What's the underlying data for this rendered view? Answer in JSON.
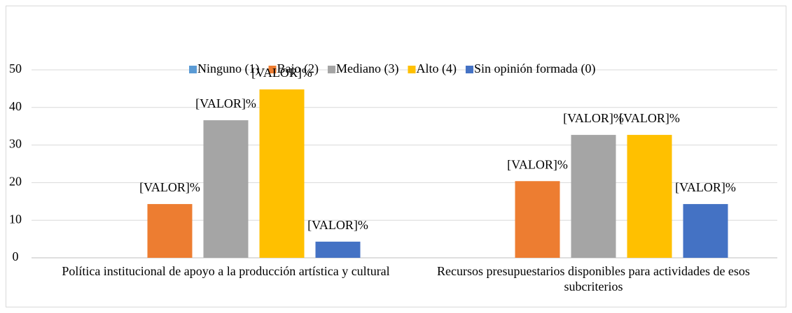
{
  "chart_data": {
    "type": "bar",
    "categories": [
      "Política institucional de apoyo a la producción artística y cultural",
      "Recursos presupuestarios disponibles para actividades de esos subcriterios"
    ],
    "series": [
      {
        "name": "Ninguno (1)",
        "color": "#5b9bd5",
        "values": [
          0,
          0
        ],
        "value_labels": [
          null,
          null
        ]
      },
      {
        "name": "Bajo (2)",
        "color": "#ed7d31",
        "values": [
          14.3,
          20.4
        ],
        "value_labels": [
          "[VALOR]%",
          "[VALOR]%"
        ]
      },
      {
        "name": "Mediano (3)",
        "color": "#a5a5a5",
        "values": [
          36.6,
          32.7
        ],
        "value_labels": [
          "[VALOR]%",
          "[VALOR]%"
        ]
      },
      {
        "name": "Alto (4)",
        "color": "#ffc000",
        "values": [
          44.8,
          32.7
        ],
        "value_labels": [
          "[VALOR]%",
          "[VALOR]%"
        ]
      },
      {
        "name": "Sin opinión formada (0)",
        "color": "#4472c4",
        "values": [
          4.3,
          14.3
        ],
        "value_labels": [
          "[VALOR]%",
          "[VALOR]%"
        ]
      }
    ],
    "ylim": [
      0,
      50
    ],
    "yticks": [
      0,
      10,
      20,
      30,
      40,
      50
    ],
    "grid": true,
    "legend": "top"
  }
}
